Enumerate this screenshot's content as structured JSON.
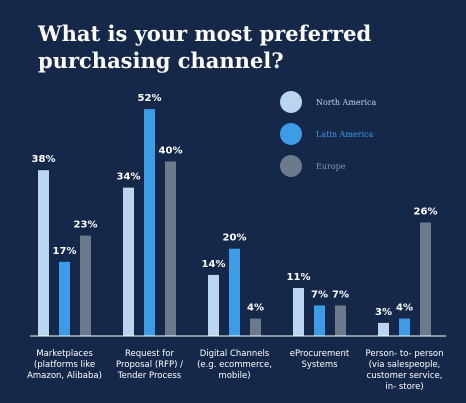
{
  "title": "What is your most preferred purchasing channel?",
  "chart_data": {
    "type": "bar",
    "title": "What is your most preferred purchasing channel?",
    "ylim": [
      0,
      55
    ],
    "grid": false,
    "legend_position": "top-right",
    "categories": [
      [
        "Marketplaces",
        "(platforms like",
        "Amazon, Alibaba)"
      ],
      [
        "Request for",
        "Proposal (RFP) /",
        "Tender Process"
      ],
      [
        "Digital Channels",
        "(e.g. ecommerce,",
        "mobile)"
      ],
      [
        "eProcurement",
        "Systems"
      ],
      [
        "Person- to- person",
        "(via salespeople,",
        "customer service,",
        "in- store)"
      ]
    ],
    "series": [
      {
        "name": "North America",
        "color": "#b9d6ee",
        "values": [
          38,
          34,
          14,
          11,
          3
        ],
        "labels": [
          "38%",
          "34%",
          "14%",
          "11%",
          "3%"
        ]
      },
      {
        "name": "Latin America",
        "color": "#3e9be6",
        "values": [
          17,
          52,
          20,
          7,
          4
        ],
        "labels": [
          "17%",
          "52%",
          "20%",
          "7%",
          "4%"
        ]
      },
      {
        "name": "Europe",
        "color": "#6c7a8c",
        "values": [
          23,
          40,
          4,
          7,
          26
        ],
        "labels": [
          "23%",
          "40%",
          "4%",
          "7%",
          "26%"
        ]
      }
    ],
    "legend_label_colors": [
      "#b9d6ee",
      "#3e9be6",
      "#8a96a6"
    ],
    "label_color": "#ffffff",
    "axis_color": "#ffffff"
  }
}
